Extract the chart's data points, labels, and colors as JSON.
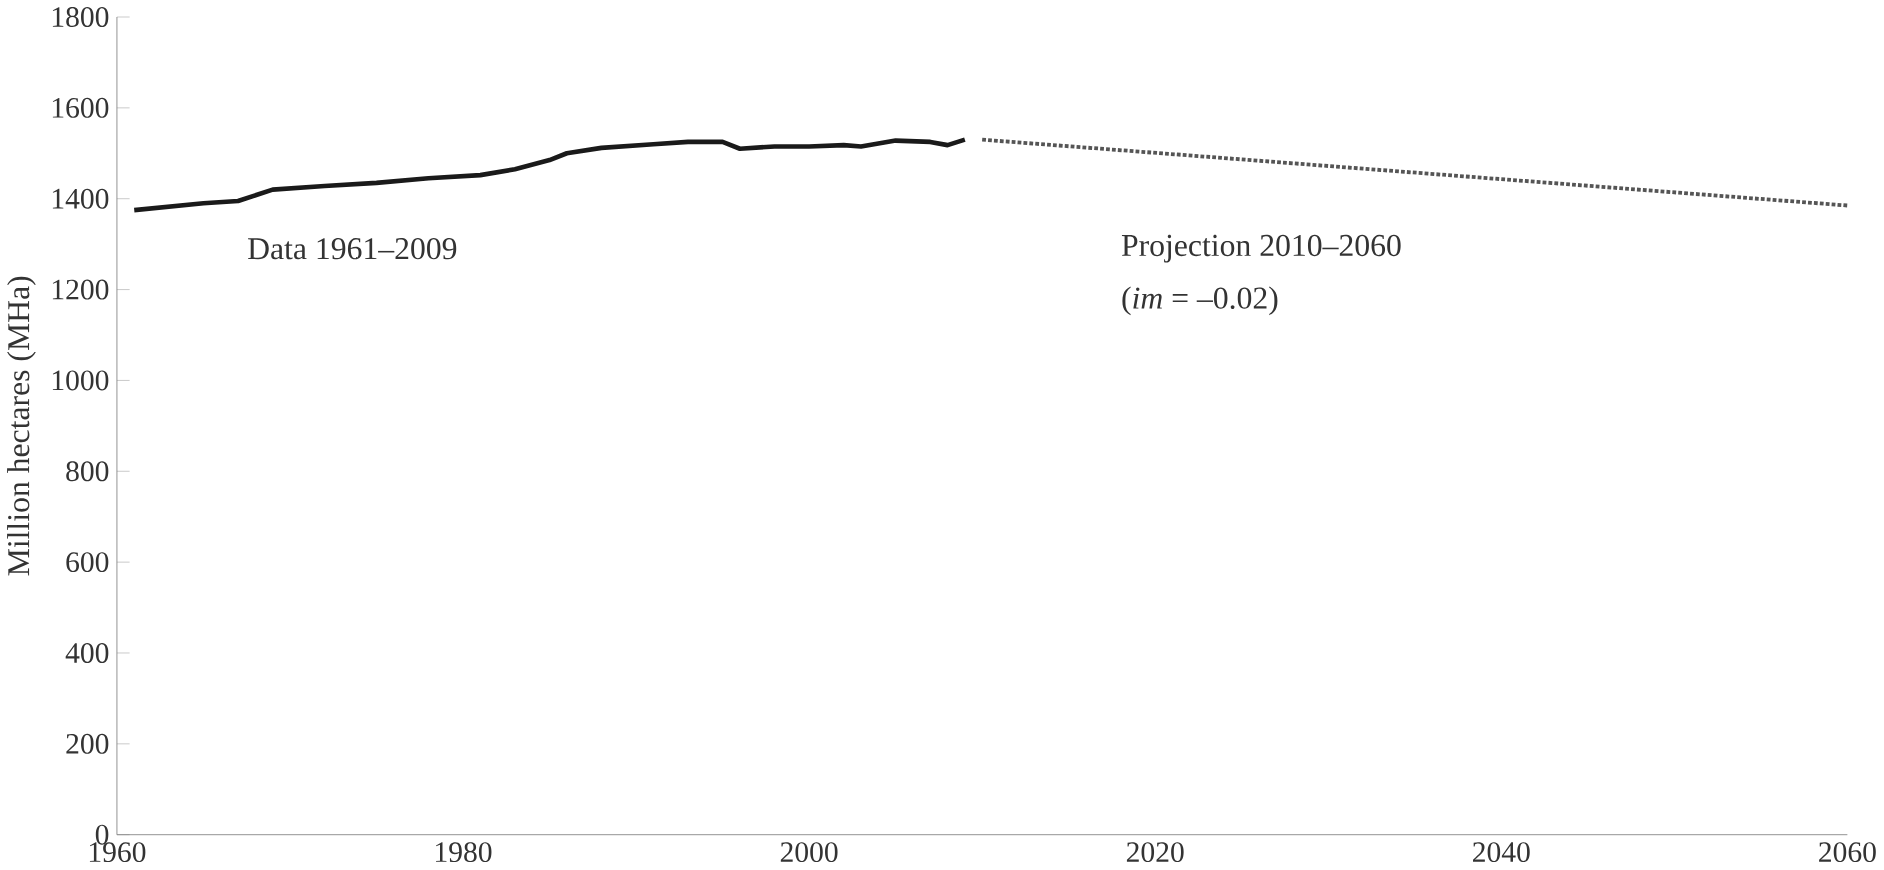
{
  "chart_data": {
    "type": "line",
    "ylabel": "Million hectares (MHa)",
    "xlim": [
      1960,
      2060
    ],
    "ylim": [
      0,
      1800
    ],
    "xticks": [
      1960,
      1980,
      2000,
      2020,
      2040,
      2060
    ],
    "yticks": [
      0,
      200,
      400,
      600,
      800,
      1000,
      1200,
      1400,
      1600,
      1800
    ],
    "grid": false,
    "annotations": [
      "Data 1961–2009",
      "Projection 2010–2060",
      "(*im* = –0.02)"
    ],
    "series": [
      {
        "color": "#1a1a1a",
        "line_style": "solid",
        "x": [
          1961,
          1965,
          1967,
          1969,
          1972,
          1975,
          1978,
          1981,
          1983,
          1985,
          1986,
          1988,
          1991,
          1993,
          1995,
          1996,
          1998,
          2000,
          2002,
          2003,
          2005,
          2007,
          2008,
          2009
        ],
        "values": [
          1375,
          1390,
          1395,
          1420,
          1428,
          1435,
          1445,
          1452,
          1465,
          1485,
          1500,
          1512,
          1520,
          1525,
          1525,
          1510,
          1515,
          1515,
          1518,
          1515,
          1528,
          1525,
          1518,
          1530
        ]
      },
      {
        "color": "#555555",
        "line_style": "dotted",
        "x": [
          2010,
          2060
        ],
        "values": [
          1530,
          1385
        ]
      }
    ]
  }
}
